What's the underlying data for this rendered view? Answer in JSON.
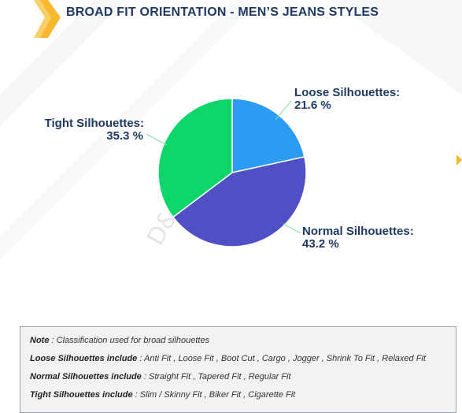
{
  "header": {
    "title": "BROAD FIT ORIENTATION - MEN’S JEANS STYLES"
  },
  "watermark": "D&J Reports",
  "chart_data": {
    "type": "pie",
    "title": "BROAD FIT ORIENTATION - MEN’S JEANS STYLES",
    "slices": [
      {
        "label": "Loose Silhouettes:",
        "value": 21.6,
        "value_label": "21.6 %",
        "color": "#2b9cf2"
      },
      {
        "label": "Normal Silhouettes:",
        "value": 43.2,
        "value_label": "43.2 %",
        "color": "#4f4fc6"
      },
      {
        "label": "Tight Silhouettes:",
        "value": 35.3,
        "value_label": "35.3 %",
        "color": "#0ed66a"
      }
    ],
    "start_angle": "12 o'clock",
    "direction": "clockwise",
    "label_color": "#1f3a63",
    "leader_line_color": "#7fe3a6"
  },
  "notes": {
    "l1_key": "Note",
    "l1_text": " : Classification used for broad silhouettes",
    "l2_key": "Loose Silhouettes include",
    "l2_text": " : Anti Fit , Loose Fit , Boot Cut , Cargo , Jogger , Shrink To Fit , Relaxed Fit",
    "l3_key": "Normal Silhouettes include",
    "l3_text": " : Straight Fit , Tapered Fit , Regular Fit",
    "l4_key": "Tight Silhouettes include",
    "l4_text": " : Slim / Skinny Fit , Biker Fit , Cigarette Fit"
  },
  "colors": {
    "brand": "#1f3a63",
    "accent": "#f5b82e"
  }
}
